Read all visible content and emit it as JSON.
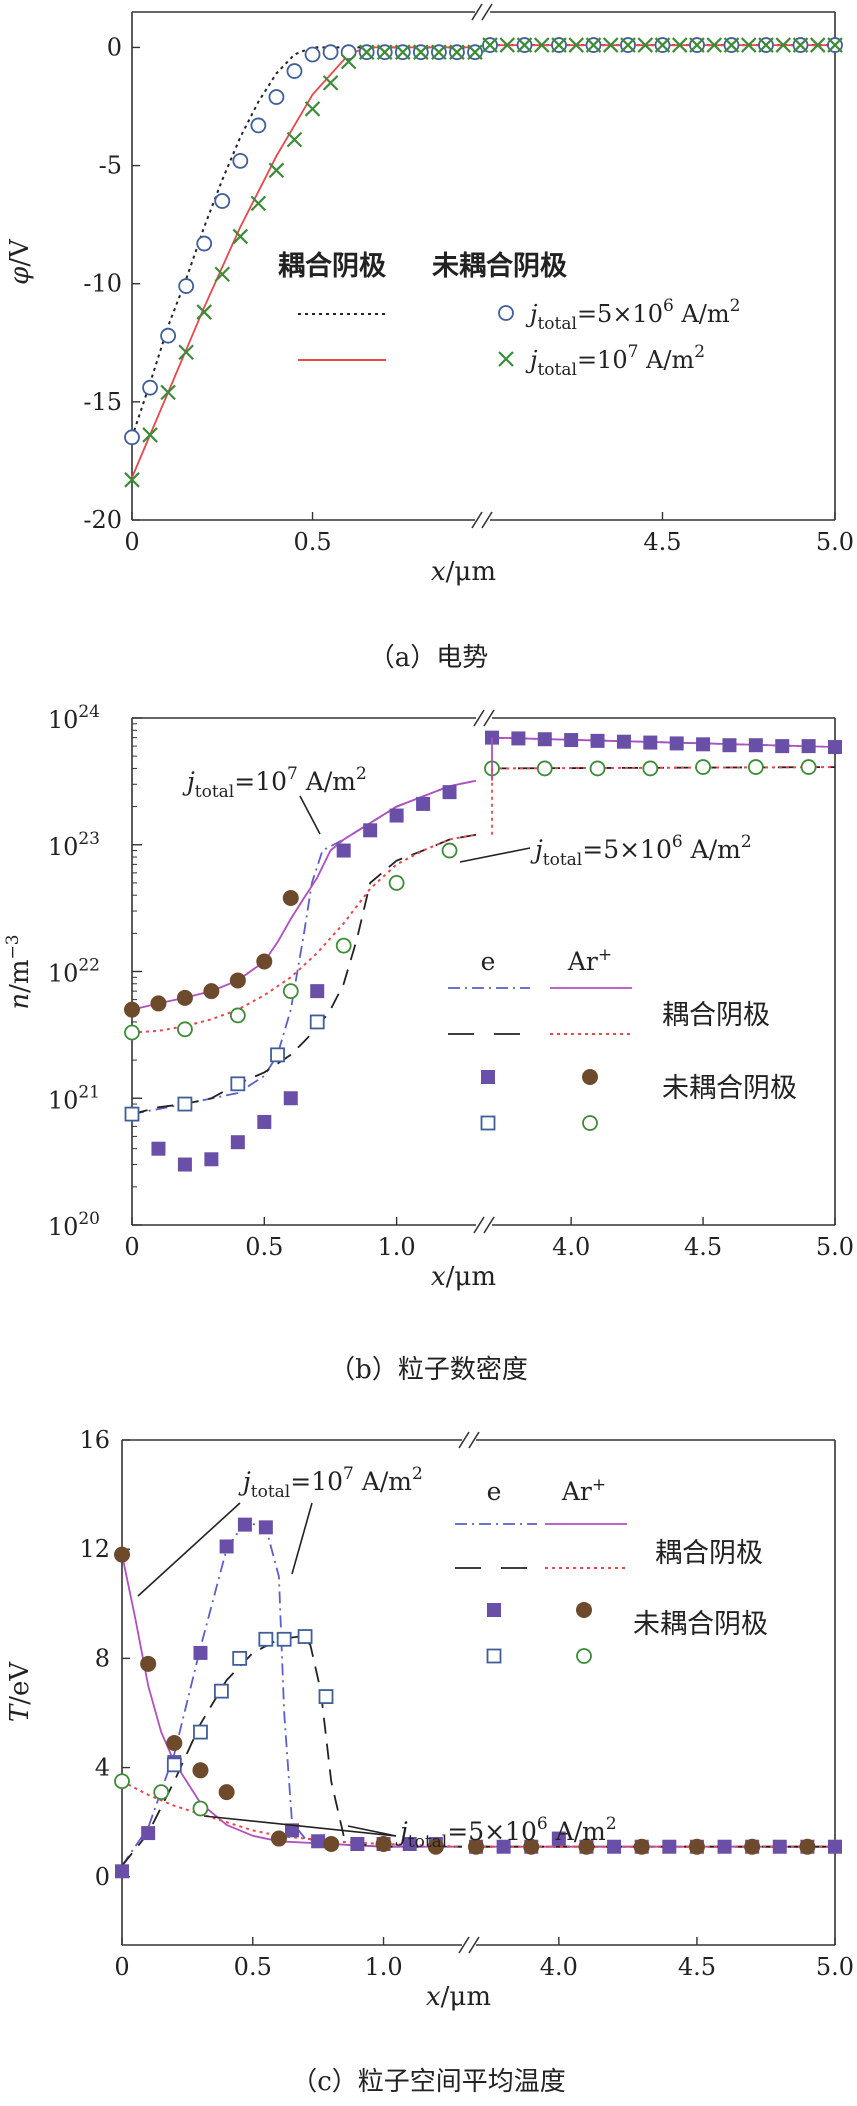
{
  "chart_data": [
    {
      "type": "line",
      "id": "a",
      "caption": "（a）电势",
      "ylabel": "φ/V",
      "xlabel": "x/μm",
      "ylim": [
        -20,
        1.5
      ],
      "yticks": [
        0,
        -5,
        -10,
        -15,
        -20
      ],
      "xticks": [
        "0",
        "0.5",
        "4.5",
        "5.0"
      ],
      "segments": [
        {
          "range": [
            0,
            0.95
          ]
        },
        {
          "range": [
            4.0,
            5.0
          ]
        }
      ],
      "legend": {
        "header_coupled": "耦合阴极",
        "header_uncoupled": "未耦合阴极",
        "label_5e6": "=5×10",
        "exp_5e6": "6",
        "label_1e7": "=10",
        "exp_1e7": "7",
        "j_symbol": "j",
        "j_sub": "total",
        "unit_main": " A/m",
        "unit_exp": "2"
      },
      "series": [
        {
          "name": "coupled j=5e6",
          "style": "dotted",
          "color": "#222222",
          "x": [
            0,
            0.05,
            0.1,
            0.15,
            0.2,
            0.25,
            0.3,
            0.35,
            0.4,
            0.45,
            0.5,
            0.55,
            0.95,
            4.0,
            5.0
          ],
          "y": [
            -16.5,
            -14.2,
            -11.8,
            -9.8,
            -7.6,
            -5.6,
            -3.8,
            -2.3,
            -1.1,
            -0.3,
            0,
            0,
            0,
            0.1,
            0.1
          ]
        },
        {
          "name": "coupled j=1e7",
          "style": "solid",
          "color": "#e8474b",
          "x": [
            0,
            0.1,
            0.2,
            0.3,
            0.4,
            0.5,
            0.6,
            0.65,
            0.95,
            4.0,
            5.0
          ],
          "y": [
            -18.2,
            -14.6,
            -11.0,
            -7.6,
            -4.6,
            -2.0,
            -0.3,
            0,
            0,
            0.1,
            0.1
          ]
        },
        {
          "name": "uncoupled j=5e6",
          "marker": "open-circle",
          "color": "#3f5e9a",
          "x": [
            0,
            0.05,
            0.1,
            0.15,
            0.2,
            0.25,
            0.3,
            0.35,
            0.4,
            0.45,
            0.5,
            0.55,
            0.6,
            0.65,
            0.7,
            0.75,
            0.8,
            0.85,
            0.9,
            0.95,
            4.0,
            4.1,
            4.2,
            4.3,
            4.4,
            4.5,
            4.6,
            4.7,
            4.8,
            4.9,
            5.0
          ],
          "y": [
            -16.5,
            -14.4,
            -12.2,
            -10.1,
            -8.3,
            -6.5,
            -4.8,
            -3.3,
            -2.1,
            -1.0,
            -0.3,
            -0.2,
            -0.2,
            -0.2,
            -0.2,
            -0.2,
            -0.2,
            -0.2,
            -0.2,
            -0.2,
            0.1,
            0.1,
            0.1,
            0.1,
            0.1,
            0.1,
            0.1,
            0.1,
            0.1,
            0.1,
            0.1
          ]
        },
        {
          "name": "uncoupled j=1e7",
          "marker": "cross",
          "color": "#3c8b37",
          "x": [
            0,
            0.05,
            0.1,
            0.15,
            0.2,
            0.25,
            0.3,
            0.35,
            0.4,
            0.45,
            0.5,
            0.55,
            0.6,
            0.65,
            0.7,
            0.75,
            0.8,
            0.85,
            0.9,
            0.95,
            4.0,
            4.05,
            4.1,
            4.15,
            4.2,
            4.25,
            4.3,
            4.35,
            4.4,
            4.45,
            4.5,
            4.55,
            4.6,
            4.65,
            4.7,
            4.75,
            4.8,
            4.85,
            4.9,
            4.95,
            5.0
          ],
          "y": [
            -18.3,
            -16.4,
            -14.6,
            -12.9,
            -11.2,
            -9.6,
            -8.0,
            -6.6,
            -5.2,
            -3.9,
            -2.6,
            -1.5,
            -0.6,
            -0.2,
            -0.2,
            -0.2,
            -0.2,
            -0.2,
            -0.2,
            -0.2,
            0.1,
            0.1,
            0.1,
            0.1,
            0.1,
            0.1,
            0.1,
            0.1,
            0.1,
            0.1,
            0.1,
            0.1,
            0.1,
            0.1,
            0.1,
            0.1,
            0.1,
            0.1,
            0.1,
            0.1,
            0.1
          ]
        }
      ]
    },
    {
      "type": "line",
      "id": "b",
      "caption": "（b）粒子数密度",
      "ylabel": "n/m",
      "ylabel_exp": "−3",
      "xlabel": "x/μm",
      "yscale": "log",
      "ylim": [
        1e+20,
        1e+24
      ],
      "ytick_exponents": [
        "20",
        "21",
        "22",
        "23",
        "24"
      ],
      "ytick_base": "10",
      "xticks": [
        "0",
        "0.5",
        "1.0",
        "4.0",
        "4.5",
        "5.0"
      ],
      "segments": [
        {
          "range": [
            0,
            1.3
          ]
        },
        {
          "range": [
            3.7,
            5.0
          ]
        }
      ],
      "legend": {
        "col_e": "e",
        "col_ar": "Ar",
        "col_ar_sup": "+",
        "row_coupled": "耦合阴极",
        "row_uncoupled": "未耦合阴极"
      },
      "annotations": [
        {
          "j_symbol": "j",
          "j_sub": "total",
          "text": "=10",
          "exp": "7",
          "unit": " A/m",
          "unit_exp": "2"
        },
        {
          "j_symbol": "j",
          "j_sub": "total",
          "text": "=5×10",
          "exp": "6",
          "unit": " A/m",
          "unit_exp": "2"
        }
      ],
      "series": [
        {
          "name": "coupled e, j=1e7",
          "style": "dashdot",
          "color": "#5b5fc7",
          "x": [
            0,
            0.2,
            0.4,
            0.5,
            0.55,
            0.6,
            0.65,
            0.68,
            0.72,
            0.8,
            1.0,
            1.2,
            1.3,
            3.7,
            5.0
          ],
          "y": [
            7.5e+20,
            9e+20,
            1.1e+21,
            1.5e+21,
            2.2e+21,
            5e+21,
            2e+22,
            5e+22,
            9e+22,
            1.1e+23,
            2e+23,
            2.9e+23,
            3.2e+23,
            7e+23,
            5.9e+23
          ]
        },
        {
          "name": "coupled Ar+, j=1e7",
          "style": "solid",
          "color": "#b04fc0",
          "x": [
            0,
            0.1,
            0.2,
            0.3,
            0.4,
            0.5,
            0.55,
            0.6,
            0.65,
            0.7,
            0.75,
            0.8,
            1.0,
            1.2,
            1.3,
            3.7,
            5.0
          ],
          "y": [
            5e+21,
            5.6e+21,
            6.2e+21,
            7e+21,
            8.5e+21,
            1.2e+22,
            1.7e+22,
            2.6e+22,
            3.8e+22,
            5.5e+22,
            9e+22,
            1.1e+23,
            2e+23,
            2.9e+23,
            3.2e+23,
            7e+23,
            5.9e+23
          ]
        },
        {
          "name": "coupled e, j=5e6",
          "style": "dashed",
          "color": "#222222",
          "x": [
            0,
            0.1,
            0.2,
            0.3,
            0.4,
            0.5,
            0.6,
            0.65,
            0.7,
            0.75,
            0.8,
            0.85,
            0.9,
            1.0,
            1.1,
            1.2,
            1.3,
            3.7,
            5.0
          ],
          "y": [
            7.5e+20,
            8.5e+20,
            9e+20,
            1e+21,
            1.3e+21,
            1.6e+21,
            2.2e+21,
            2.8e+21,
            3.6e+21,
            5e+21,
            8e+21,
            1.8e+22,
            5e+22,
            7.5e+22,
            9e+22,
            1.1e+23,
            1.2e+23,
            4e+23,
            4.1e+23
          ]
        },
        {
          "name": "coupled Ar+, j=5e6",
          "style": "dotted",
          "color": "#e8474b",
          "x": [
            0,
            0.1,
            0.2,
            0.3,
            0.4,
            0.5,
            0.6,
            0.7,
            0.8,
            0.9,
            1.0,
            1.1,
            1.2,
            1.3,
            3.7,
            5.0
          ],
          "y": [
            3.3e+21,
            3.4e+21,
            3.7e+21,
            4.2e+21,
            5e+21,
            6.5e+21,
            9e+21,
            1.4e+22,
            2.4e+22,
            4.5e+22,
            7e+22,
            9e+22,
            1.1e+23,
            1.2e+23,
            4e+23,
            4.1e+23
          ]
        },
        {
          "name": "uncoupled e, j=1e7",
          "marker": "filled-square",
          "color": "#6a4fa8",
          "x": [
            0,
            0.1,
            0.2,
            0.3,
            0.4,
            0.5,
            0.6,
            0.7,
            0.8,
            0.9,
            1.0,
            1.1,
            1.2,
            3.7,
            3.8,
            3.9,
            4.0,
            4.1,
            4.2,
            4.3,
            4.4,
            4.5,
            4.6,
            4.7,
            4.8,
            4.9,
            5.0
          ],
          "y": [
            7.5e+20,
            4e+20,
            3e+20,
            3.3e+20,
            4.5e+20,
            6.5e+20,
            1e+21,
            7e+21,
            9e+22,
            1.3e+23,
            1.7e+23,
            2.1e+23,
            2.6e+23,
            7e+23,
            6.9e+23,
            6.8e+23,
            6.7e+23,
            6.6e+23,
            6.5e+23,
            6.4e+23,
            6.3e+23,
            6.2e+23,
            6.1e+23,
            6.1e+23,
            6e+23,
            6e+23,
            5.9e+23
          ]
        },
        {
          "name": "uncoupled Ar+, j=1e7",
          "marker": "filled-circle",
          "color": "#6e4a2c",
          "x": [
            0,
            0.1,
            0.2,
            0.3,
            0.4,
            0.5,
            0.6
          ],
          "y": [
            5e+21,
            5.6e+21,
            6.2e+21,
            7e+21,
            8.5e+21,
            1.2e+22,
            3.8e+22
          ]
        },
        {
          "name": "uncoupled e, j=5e6",
          "marker": "open-square",
          "color": "#3f5e9a",
          "x": [
            0,
            0.2,
            0.4,
            0.55,
            0.7
          ],
          "y": [
            7.5e+20,
            9e+20,
            1.3e+21,
            2.2e+21,
            4e+21
          ]
        },
        {
          "name": "uncoupled Ar+, j=5e6",
          "marker": "open-circle",
          "color": "#3c8b37",
          "x": [
            0,
            0.2,
            0.4,
            0.6,
            0.8,
            1.0,
            1.2,
            3.7,
            3.9,
            4.1,
            4.3,
            4.5,
            4.7,
            4.9
          ],
          "y": [
            3.3e+21,
            3.5e+21,
            4.5e+21,
            7e+21,
            1.6e+22,
            5e+22,
            9e+22,
            4e+23,
            4e+23,
            4e+23,
            4e+23,
            4.1e+23,
            4.1e+23,
            4.1e+23
          ]
        }
      ]
    },
    {
      "type": "line",
      "id": "c",
      "caption": "（c）粒子空间平均温度",
      "ylabel": "T/eV",
      "xlabel": "x/μm",
      "ylim": [
        -2.5,
        16
      ],
      "yticks": [
        16,
        12,
        8,
        4,
        0
      ],
      "xticks": [
        "0",
        "0.5",
        "1.0",
        "4.0",
        "4.5",
        "5.0"
      ],
      "segments": [
        {
          "range": [
            0,
            1.3
          ]
        },
        {
          "range": [
            3.7,
            5.0
          ]
        }
      ],
      "legend": {
        "col_e": "e",
        "col_ar": "Ar",
        "col_ar_sup": "+",
        "row_coupled": "耦合阴极",
        "row_uncoupled": "未耦合阴极"
      },
      "annotations": [
        {
          "j_symbol": "j",
          "j_sub": "total",
          "text": "=10",
          "exp": "7",
          "unit": " A/m",
          "unit_exp": "2"
        },
        {
          "j_symbol": "j",
          "j_sub": "total",
          "text": "=5×10",
          "exp": "6",
          "unit": " A/m",
          "unit_exp": "2"
        }
      ],
      "series": [
        {
          "name": "coupled e, j=1e7",
          "style": "dashdot",
          "color": "#5b5fc7",
          "x": [
            0,
            0.1,
            0.2,
            0.3,
            0.4,
            0.47,
            0.55,
            0.6,
            0.62,
            0.65,
            0.7,
            0.8,
            1.0,
            1.3,
            3.7,
            5.0
          ],
          "y": [
            0.4,
            1.8,
            4.5,
            8.4,
            12.0,
            13.0,
            12.8,
            11.0,
            6.0,
            2.0,
            1.4,
            1.2,
            1.1,
            1.1,
            1.1,
            1.1
          ]
        },
        {
          "name": "coupled Ar+, j=1e7",
          "style": "solid",
          "color": "#b04fc0",
          "x": [
            0,
            0.05,
            0.1,
            0.15,
            0.2,
            0.3,
            0.4,
            0.5,
            0.6,
            0.8,
            1.0,
            1.3,
            3.7,
            5.0
          ],
          "y": [
            11.8,
            9.5,
            7.0,
            5.3,
            4.2,
            2.7,
            1.9,
            1.5,
            1.3,
            1.2,
            1.1,
            1.1,
            1.1,
            1.1
          ]
        },
        {
          "name": "coupled e, j=5e6",
          "style": "dashed",
          "color": "#222222",
          "x": [
            0,
            0.1,
            0.2,
            0.3,
            0.4,
            0.5,
            0.6,
            0.68,
            0.72,
            0.76,
            0.8,
            0.85,
            0.9,
            1.0,
            1.3,
            3.7,
            5.0
          ],
          "y": [
            0.4,
            1.6,
            3.5,
            5.6,
            7.2,
            8.2,
            8.7,
            8.8,
            8.5,
            6.8,
            3.5,
            1.4,
            1.2,
            1.1,
            1.1,
            1.1,
            1.1
          ]
        },
        {
          "name": "coupled Ar+, j=5e6",
          "style": "dotted",
          "color": "#e8474b",
          "x": [
            0,
            0.1,
            0.2,
            0.3,
            0.4,
            0.5,
            0.6,
            0.8,
            1.0,
            1.3,
            3.7,
            5.0
          ],
          "y": [
            3.5,
            3.0,
            2.6,
            2.3,
            2.0,
            1.7,
            1.5,
            1.3,
            1.2,
            1.1,
            1.1,
            1.1
          ]
        },
        {
          "name": "uncoupled e, j=1e7",
          "marker": "filled-square",
          "color": "#6a4fa8",
          "x": [
            0,
            0.1,
            0.2,
            0.3,
            0.4,
            0.47,
            0.55,
            0.65,
            0.75,
            0.9,
            1.0,
            1.1,
            1.2,
            3.7,
            3.8,
            3.9,
            4.0,
            4.1,
            4.2,
            4.3,
            4.4,
            4.5,
            4.6,
            4.7,
            4.8,
            4.9,
            5.0
          ],
          "y": [
            0.2,
            1.6,
            4.2,
            8.2,
            12.1,
            12.9,
            12.8,
            1.7,
            1.3,
            1.2,
            1.2,
            1.2,
            1.2,
            1.1,
            1.1,
            1.1,
            1.4,
            1.1,
            1.1,
            1.1,
            1.1,
            1.1,
            1.1,
            1.1,
            1.1,
            1.1,
            1.1
          ]
        },
        {
          "name": "uncoupled Ar+, j=1e7",
          "marker": "filled-circle",
          "color": "#6e4a2c",
          "x": [
            0,
            0.1,
            0.2,
            0.3,
            0.4,
            0.6,
            0.8,
            1.0,
            1.2,
            3.7,
            3.9,
            4.1,
            4.3,
            4.5,
            4.7,
            4.9
          ],
          "y": [
            11.8,
            7.8,
            4.9,
            3.9,
            3.1,
            1.4,
            1.2,
            1.2,
            1.1,
            1.1,
            1.1,
            1.1,
            1.1,
            1.1,
            1.1,
            1.1
          ]
        },
        {
          "name": "uncoupled e, j=5e6",
          "marker": "open-square",
          "color": "#3f5e9a",
          "x": [
            0.2,
            0.3,
            0.38,
            0.45,
            0.55,
            0.62,
            0.7,
            0.78
          ],
          "y": [
            4.1,
            5.3,
            6.8,
            8.0,
            8.7,
            8.7,
            8.8,
            6.6
          ]
        },
        {
          "name": "uncoupled Ar+, j=5e6",
          "marker": "open-circle",
          "color": "#3c8b37",
          "x": [
            0,
            0.15,
            0.3
          ],
          "y": [
            3.5,
            3.1,
            2.5
          ]
        }
      ]
    }
  ]
}
